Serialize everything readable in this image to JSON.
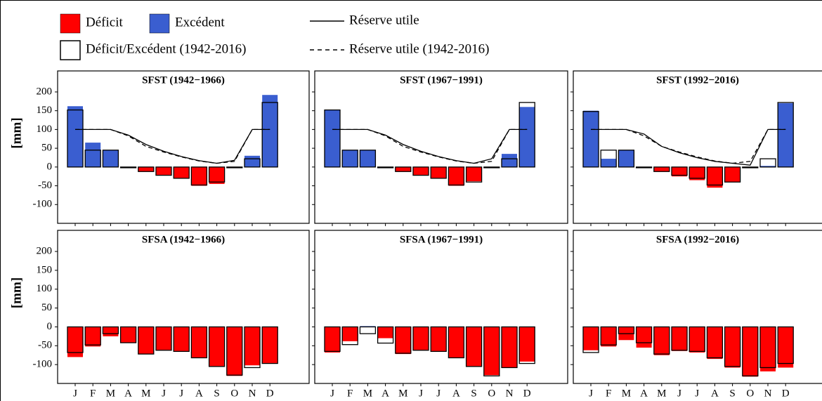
{
  "legend": [
    {
      "name": "Déficit",
      "color": "#ff0000",
      "style": "fill"
    },
    {
      "name": "Excédent",
      "color": "#3a5ed0",
      "style": "fill"
    },
    {
      "name": "Réserve utile",
      "color": "#000000",
      "style": "solid"
    },
    {
      "name": "Déficit/Excédent (1942-2016)",
      "color": "#000000",
      "style": "outline"
    },
    {
      "name": "Réserve utile (1942-2016)",
      "color": "#000000",
      "style": "dashed"
    }
  ],
  "chart_data": [
    {
      "type": "bar",
      "title": "SFST (1942−1966)",
      "ylabel": "[mm]",
      "ylim": [
        -150,
        256
      ],
      "yticks": [
        -100,
        -50,
        0,
        50,
        100,
        150,
        200
      ],
      "bars": [
        162,
        65,
        45,
        -3,
        -12,
        -22,
        -30,
        -50,
        -45,
        -2,
        30,
        192
      ],
      "ref_bars": [
        152,
        45,
        45,
        -2,
        -12,
        -22,
        -30,
        -48,
        -40,
        -2,
        22,
        172
      ],
      "reserve": [
        100,
        100,
        100,
        85,
        60,
        42,
        28,
        17,
        10,
        18,
        100,
        100
      ],
      "ref_reserve": [
        100,
        100,
        100,
        83,
        55,
        40,
        27,
        16,
        10,
        15,
        100,
        100
      ]
    },
    {
      "type": "bar",
      "title": "SFST (1967−1991)",
      "ylim": [
        -150,
        256
      ],
      "yticks": [
        -100,
        -50,
        0,
        50,
        100,
        150,
        200
      ],
      "bars": [
        152,
        45,
        45,
        -2,
        -12,
        -22,
        -30,
        -50,
        -38,
        0,
        35,
        160
      ],
      "ref_bars": [
        152,
        45,
        45,
        -2,
        -12,
        -22,
        -30,
        -48,
        -40,
        -2,
        22,
        172
      ],
      "reserve": [
        100,
        100,
        100,
        85,
        60,
        42,
        28,
        17,
        10,
        22,
        100,
        100
      ],
      "ref_reserve": [
        100,
        100,
        100,
        83,
        55,
        40,
        27,
        16,
        10,
        15,
        100,
        100
      ]
    },
    {
      "type": "bar",
      "title": "SFST (1992−2016)",
      "ylim": [
        -150,
        256
      ],
      "yticks": [
        -100,
        -50,
        0,
        50,
        100,
        150,
        200
      ],
      "bars": [
        150,
        22,
        45,
        -2,
        -12,
        -25,
        -35,
        -55,
        -40,
        -2,
        3,
        170
      ],
      "ref_bars": [
        148,
        45,
        45,
        -2,
        -12,
        -22,
        -30,
        -48,
        -40,
        -2,
        22,
        172
      ],
      "reserve": [
        100,
        100,
        100,
        88,
        55,
        38,
        25,
        15,
        10,
        5,
        100,
        100
      ],
      "ref_reserve": [
        100,
        100,
        100,
        83,
        55,
        40,
        27,
        16,
        10,
        15,
        100,
        100
      ]
    },
    {
      "type": "bar",
      "title": "SFSA (1942−1966)",
      "ylabel": "[mm]",
      "ylim": [
        -150,
        256
      ],
      "yticks": [
        -100,
        -50,
        0,
        50,
        100,
        150,
        200
      ],
      "categories": [
        "J",
        "F",
        "M",
        "A",
        "M",
        "J",
        "J",
        "A",
        "S",
        "O",
        "N",
        "D"
      ],
      "bars": [
        -80,
        -52,
        -25,
        -42,
        -72,
        -62,
        -65,
        -82,
        -105,
        -130,
        -102,
        -97
      ],
      "ref_bars": [
        -68,
        -48,
        -18,
        -42,
        -72,
        -62,
        -65,
        -82,
        -105,
        -128,
        -108,
        -97
      ]
    },
    {
      "type": "bar",
      "title": "SFSA (1967−1991)",
      "ylim": [
        -150,
        256
      ],
      "yticks": [
        -100,
        -50,
        0,
        50,
        100,
        150,
        200
      ],
      "categories": [
        "J",
        "F",
        "M",
        "A",
        "M",
        "J",
        "J",
        "A",
        "S",
        "O",
        "N",
        "D"
      ],
      "bars": [
        -68,
        -38,
        2,
        -30,
        -72,
        -62,
        -65,
        -82,
        -105,
        -128,
        -108,
        -92
      ],
      "ref_bars": [
        -65,
        -47,
        -18,
        -43,
        -70,
        -62,
        -65,
        -82,
        -105,
        -130,
        -108,
        -97
      ]
    },
    {
      "type": "bar",
      "title": "SFSA (1992−2016)",
      "ylim": [
        -150,
        256
      ],
      "yticks": [
        -100,
        -50,
        0,
        50,
        100,
        150,
        200
      ],
      "categories": [
        "J",
        "F",
        "M",
        "A",
        "M",
        "J",
        "J",
        "A",
        "S",
        "O",
        "N",
        "D"
      ],
      "bars": [
        -62,
        -52,
        -35,
        -55,
        -75,
        -64,
        -68,
        -85,
        -108,
        -132,
        -118,
        -108
      ],
      "ref_bars": [
        -68,
        -48,
        -18,
        -42,
        -72,
        -62,
        -65,
        -82,
        -105,
        -130,
        -108,
        -97
      ]
    }
  ]
}
